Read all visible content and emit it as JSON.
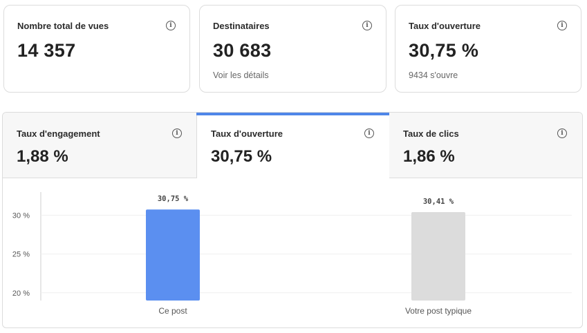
{
  "stats": [
    {
      "label": "Nombre total de vues",
      "value": "14 357",
      "sub": ""
    },
    {
      "label": "Destinataires",
      "value": "30 683",
      "sub": "Voir les détails"
    },
    {
      "label": "Taux d'ouverture",
      "value": "30,75 %",
      "sub": "9434 s'ouvre"
    }
  ],
  "tabs": [
    {
      "label": "Taux d'engagement",
      "value": "1,88 %",
      "active": false
    },
    {
      "label": "Taux d'ouverture",
      "value": "30,75 %",
      "active": true
    },
    {
      "label": "Taux de clics",
      "value": "1,86 %",
      "active": false
    }
  ],
  "info_icon": "info-circle-icon",
  "colors": {
    "accent": "#4f86e8",
    "bar_primary": "#5b8ff0",
    "bar_secondary": "#dcdcdc"
  },
  "chart_data": {
    "type": "bar",
    "categories": [
      "Ce post",
      "Votre post typique"
    ],
    "values": [
      30.75,
      30.41
    ],
    "data_labels": [
      "30,75 %",
      "30,41 %"
    ],
    "y_ticks": [
      {
        "value": 30,
        "label": "30 %"
      },
      {
        "value": 25,
        "label": "25 %"
      },
      {
        "value": 20,
        "label": "20 %"
      }
    ],
    "ylim": [
      19,
      33
    ],
    "grid": true
  }
}
